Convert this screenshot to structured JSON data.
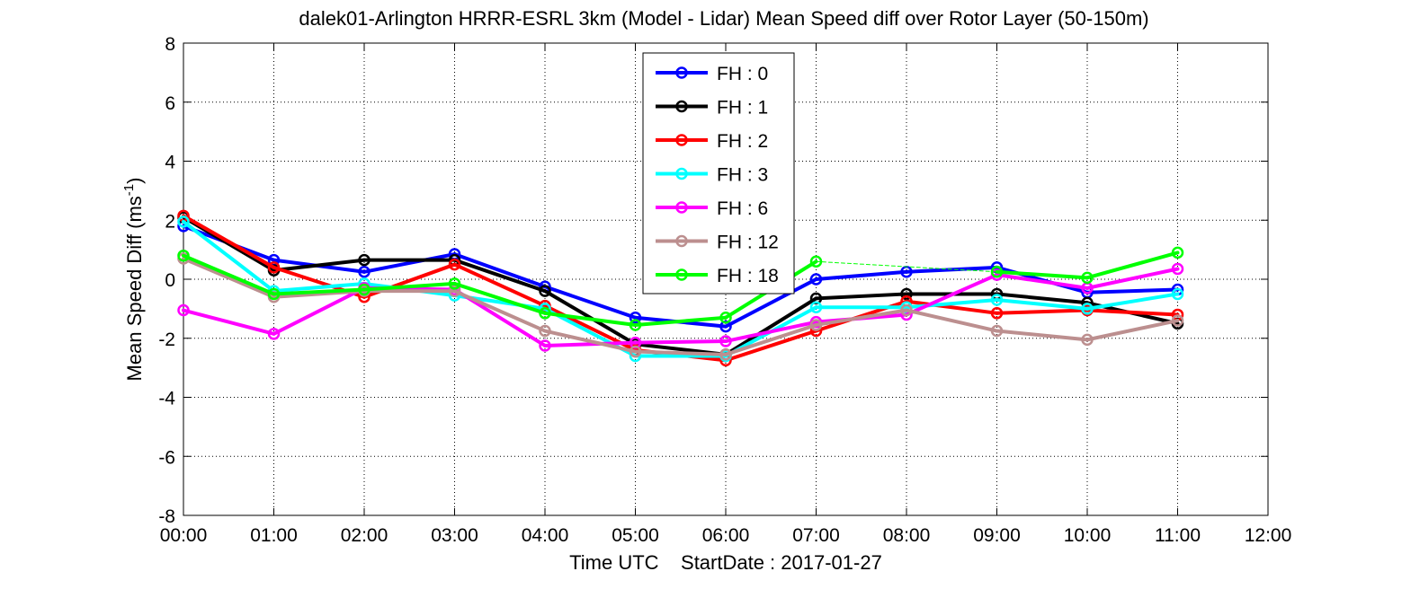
{
  "chart_data": {
    "type": "line",
    "title": "dalek01-Arlington HRRR-ESRL 3km (Model - Lidar) Mean Speed diff over Rotor Layer (50-150m)",
    "xlabel": "Time UTC    StartDate : 2017-01-27",
    "ylabel": "Mean Speed Diff (ms",
    "ylabel_sup": "-1",
    "ylabel_close": ")",
    "x_ticks": [
      "00:00",
      "01:00",
      "02:00",
      "03:00",
      "04:00",
      "05:00",
      "06:00",
      "07:00",
      "08:00",
      "09:00",
      "10:00",
      "11:00",
      "12:00"
    ],
    "y_ticks": [
      "8",
      "6",
      "4",
      "2",
      "0",
      "-2",
      "-4",
      "-6",
      "-8"
    ],
    "xlim": [
      0,
      12
    ],
    "ylim": [
      -8,
      8
    ],
    "grid": true,
    "legend_position": "top-center",
    "x": [
      "00:00",
      "01:00",
      "02:00",
      "03:00",
      "04:00",
      "05:00",
      "06:00",
      "07:00",
      "08:00",
      "09:00",
      "10:00",
      "11:00"
    ],
    "series": [
      {
        "name": "FH : 0",
        "color": "#0000ff",
        "values": [
          1.8,
          0.65,
          0.25,
          0.85,
          -0.25,
          -1.3,
          -1.6,
          0.0,
          0.25,
          0.4,
          -0.45,
          -0.35
        ]
      },
      {
        "name": "FH : 1",
        "color": "#000000",
        "values": [
          2.1,
          0.3,
          0.65,
          0.65,
          -0.4,
          -2.2,
          -2.55,
          -0.65,
          -0.5,
          -0.5,
          -0.8,
          -1.5
        ]
      },
      {
        "name": "FH : 2",
        "color": "#ff0000",
        "values": [
          2.15,
          0.4,
          -0.6,
          0.5,
          -0.9,
          -2.4,
          -2.75,
          -1.75,
          -0.75,
          -1.15,
          -1.05,
          -1.2
        ]
      },
      {
        "name": "FH : 3",
        "color": "#00ffff",
        "values": [
          1.95,
          -0.4,
          -0.15,
          -0.55,
          -1.0,
          -2.6,
          -2.6,
          -0.95,
          -0.95,
          -0.7,
          -1.0,
          -0.5
        ]
      },
      {
        "name": "FH : 6",
        "color": "#ff00ff",
        "values": [
          -1.05,
          -1.85,
          -0.3,
          -0.35,
          -2.25,
          -2.15,
          -2.1,
          -1.45,
          -1.2,
          0.15,
          -0.3,
          0.35
        ]
      },
      {
        "name": "FH : 12",
        "color": "#bc8f8f",
        "values": [
          0.7,
          -0.6,
          -0.4,
          -0.4,
          -1.75,
          -2.45,
          -2.55,
          -1.55,
          -1.05,
          -1.75,
          -2.05,
          -1.4
        ]
      },
      {
        "name": "FH : 18",
        "color": "#00ff00",
        "values": [
          0.8,
          -0.5,
          -0.35,
          -0.15,
          -1.15,
          -1.55,
          -1.3,
          0.6,
          null,
          0.25,
          0.05,
          0.9
        ]
      }
    ]
  }
}
